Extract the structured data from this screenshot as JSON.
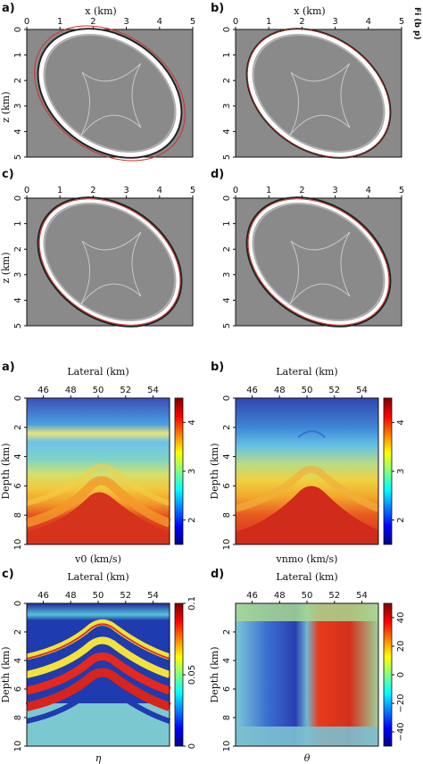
{
  "top_figure": {
    "panels": [
      {
        "id": "a",
        "label": "a)",
        "xlabel": "x (km)",
        "zlabel": "z (km)",
        "xticks": [
          "0",
          "1",
          "2",
          "3",
          "4",
          "5"
        ],
        "zticks": [
          "0",
          "1",
          "2",
          "3",
          "4",
          "5"
        ]
      },
      {
        "id": "b",
        "label": "b)",
        "xlabel": "x (km)",
        "zlabel": "",
        "xticks": [
          "0",
          "1",
          "2",
          "3",
          "4",
          "5"
        ],
        "zticks": [
          "0",
          "1",
          "2",
          "3",
          "4",
          "5"
        ]
      },
      {
        "id": "c",
        "label": "c)",
        "xlabel": "",
        "zlabel": "z (km)",
        "xticks": [
          "0",
          "1",
          "2",
          "3",
          "4",
          "5"
        ],
        "zticks": [
          "0",
          "1",
          "2",
          "3",
          "4",
          "5"
        ]
      },
      {
        "id": "d",
        "label": "d)",
        "xlabel": "",
        "zlabel": "",
        "xticks": [
          "0",
          "1",
          "2",
          "3",
          "4",
          "5"
        ],
        "zticks": [
          "0",
          "1",
          "2",
          "3",
          "4",
          "5"
        ]
      }
    ],
    "edge_text": "Fi (b p)"
  },
  "bottom_figure": {
    "panels": [
      {
        "id": "a",
        "label": "a)",
        "title": "Lateral (km)",
        "ylabel": "Depth (km)",
        "xticks": [
          "46",
          "48",
          "50",
          "52",
          "54"
        ],
        "yticks": [
          "0",
          "2",
          "4",
          "6",
          "8",
          "10"
        ],
        "caption": "v0 (km/s)",
        "cbar_ticks": [
          "2",
          "3",
          "4"
        ],
        "cbar_range": [
          1.5,
          4.5
        ],
        "colormap": "jet"
      },
      {
        "id": "b",
        "label": "b)",
        "title": "Lateral (km)",
        "ylabel": "Depth (km)",
        "xticks": [
          "46",
          "48",
          "50",
          "52",
          "54"
        ],
        "yticks": [
          "0",
          "2",
          "4",
          "6",
          "8",
          "10"
        ],
        "caption": "vnmo (km/s)",
        "cbar_ticks": [
          "2",
          "3",
          "4"
        ],
        "cbar_range": [
          1.5,
          4.5
        ],
        "colormap": "jet"
      },
      {
        "id": "c",
        "label": "c)",
        "title": "Lateral (km)",
        "ylabel": "Depth (km)",
        "xticks": [
          "46",
          "48",
          "50",
          "52",
          "54"
        ],
        "yticks": [
          "0",
          "2",
          "4",
          "6",
          "8",
          "10"
        ],
        "caption": "η",
        "cbar_ticks": [
          "0",
          "0.05",
          "0.1"
        ],
        "cbar_range": [
          0,
          0.1
        ],
        "colormap": "jet"
      },
      {
        "id": "d",
        "label": "d)",
        "title": "Lateral (km)",
        "ylabel": "Depth (km)",
        "xticks": [
          "46",
          "48",
          "50",
          "52",
          "54"
        ],
        "yticks": [
          "2",
          "4",
          "6",
          "8",
          "10"
        ],
        "caption": "θ",
        "cbar_ticks": [
          "40",
          "20",
          "0",
          "−20",
          "−40"
        ],
        "cbar_range": [
          -50,
          50
        ],
        "colormap": "jet"
      }
    ]
  },
  "colors": {
    "seismic_gray": "#8a8a8a",
    "wavefront_red": "#d0302a"
  }
}
